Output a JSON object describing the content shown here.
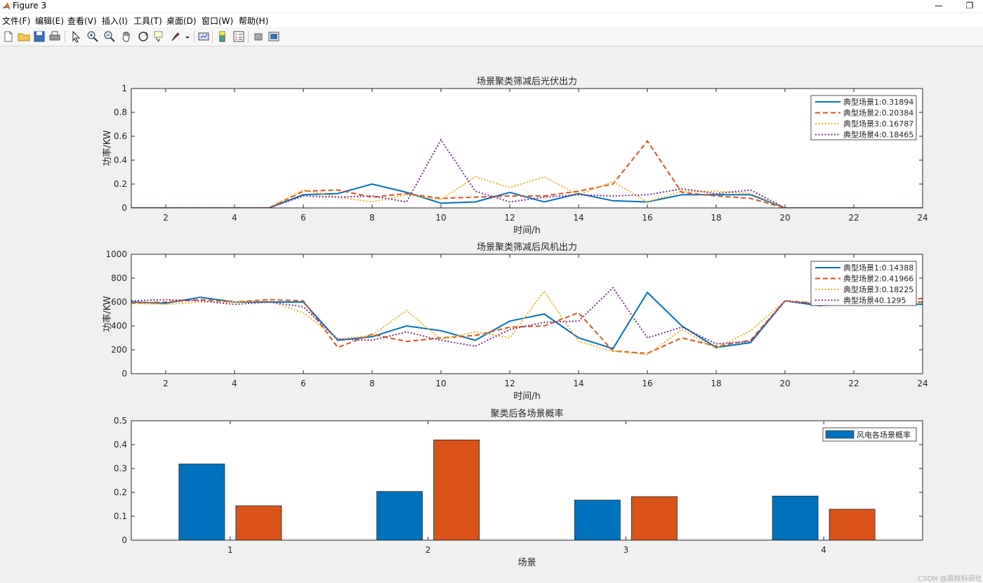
{
  "window": {
    "title": "Figure 3",
    "minimize_glyph": "—",
    "restore_glyph": "❐"
  },
  "menu": [
    "文件(F)",
    "编辑(E)",
    "查看(V)",
    "插入(I)",
    "工具(T)",
    "桌面(D)",
    "窗口(W)",
    "帮助(H)"
  ],
  "toolbar_icons": [
    "new-figure-icon",
    "open-file-icon",
    "save-icon",
    "print-icon",
    "select-arrow-icon",
    "zoom-in-icon",
    "zoom-out-icon",
    "pan-hand-icon",
    "rotate-3d-icon",
    "data-cursor-icon",
    "brush-icon",
    "link-plot-icon",
    "colorbar-icon",
    "legend-icon",
    "hide-plot-tools-icon",
    "show-plot-tools-icon"
  ],
  "colors": {
    "blue": "#0072BD",
    "orange": "#D95319",
    "yellow": "#EDB120",
    "purple": "#7E2F8E"
  },
  "watermark": "CSDN @荔枝科研社",
  "chart_data": [
    {
      "type": "line",
      "title": "场景聚类筛减后光伏出力",
      "xlabel": "时间/h",
      "ylabel": "功率/KW",
      "xlim": [
        1,
        24
      ],
      "ylim": [
        0,
        1
      ],
      "xticks": [
        2,
        4,
        6,
        8,
        10,
        12,
        14,
        16,
        18,
        20,
        22,
        24
      ],
      "yticks": [
        0,
        0.2,
        0.4,
        0.6,
        0.8,
        1
      ],
      "x": [
        1,
        2,
        3,
        4,
        5,
        6,
        7,
        8,
        9,
        10,
        11,
        12,
        13,
        14,
        15,
        16,
        17,
        18,
        19,
        20,
        21,
        22,
        23,
        24
      ],
      "legend_position": "top-right",
      "series": [
        {
          "name": "典型场景1:0.31894",
          "color": "#0072BD",
          "style": "solid",
          "values": [
            0,
            0,
            0,
            0,
            0,
            0.11,
            0.12,
            0.2,
            0.13,
            0.04,
            0.05,
            0.13,
            0.05,
            0.12,
            0.06,
            0.05,
            0.11,
            0.11,
            0.11,
            0,
            0,
            0,
            0,
            0
          ]
        },
        {
          "name": "典型场景2:0.20384",
          "color": "#D95319",
          "style": "dashed",
          "values": [
            0,
            0,
            0,
            0,
            0,
            0.14,
            0.15,
            0.09,
            0.12,
            0.08,
            0.09,
            0.1,
            0.1,
            0.14,
            0.2,
            0.56,
            0.13,
            0.1,
            0.08,
            0,
            0,
            0,
            0,
            0
          ]
        },
        {
          "name": "典型场景3:0.16787",
          "color": "#EDB120",
          "style": "dotted",
          "values": [
            0,
            0,
            0,
            0,
            0,
            0.15,
            0.09,
            0.05,
            0.11,
            0.07,
            0.26,
            0.17,
            0.26,
            0.11,
            0.22,
            0.05,
            0.14,
            0.14,
            0.12,
            0,
            0,
            0,
            0,
            0
          ]
        },
        {
          "name": "典型场景4:0.18465",
          "color": "#7E2F8E",
          "style": "dotted",
          "values": [
            0,
            0,
            0,
            0,
            0,
            0.1,
            0.09,
            0.1,
            0.05,
            0.57,
            0.14,
            0.05,
            0.09,
            0.11,
            0.1,
            0.11,
            0.16,
            0.12,
            0.15,
            0,
            0,
            0,
            0,
            0
          ]
        }
      ]
    },
    {
      "type": "line",
      "title": "场景聚类筛减后风机出力",
      "xlabel": "时间/h",
      "ylabel": "功率/KW",
      "xlim": [
        1,
        24
      ],
      "ylim": [
        0,
        1000
      ],
      "xticks": [
        2,
        4,
        6,
        8,
        10,
        12,
        14,
        16,
        18,
        20,
        22,
        24
      ],
      "yticks": [
        0,
        200,
        400,
        600,
        800,
        1000
      ],
      "x": [
        1,
        2,
        3,
        4,
        5,
        6,
        7,
        8,
        9,
        10,
        11,
        12,
        13,
        14,
        15,
        16,
        17,
        18,
        19,
        20,
        21,
        22,
        23,
        24
      ],
      "legend_position": "top-right",
      "series": [
        {
          "name": "典型场景1:0.14388",
          "color": "#0072BD",
          "style": "solid",
          "values": [
            600,
            590,
            640,
            600,
            600,
            600,
            280,
            310,
            400,
            360,
            280,
            440,
            500,
            300,
            210,
            680,
            400,
            220,
            260,
            610,
            570,
            590,
            590,
            580
          ]
        },
        {
          "name": "典型场景2:0.41966",
          "color": "#D95319",
          "style": "dashed",
          "values": [
            590,
            600,
            620,
            600,
            620,
            610,
            220,
            330,
            270,
            300,
            320,
            390,
            400,
            510,
            190,
            170,
            300,
            230,
            280,
            610,
            590,
            600,
            610,
            630
          ]
        },
        {
          "name": "典型场景3:0.18225",
          "color": "#EDB120",
          "style": "dotted",
          "values": [
            590,
            580,
            600,
            600,
            610,
            510,
            290,
            320,
            530,
            290,
            350,
            300,
            690,
            270,
            190,
            160,
            370,
            210,
            360,
            610,
            590,
            600,
            590,
            590
          ]
        },
        {
          "name": "典型场景40.1295",
          "color": "#7E2F8E",
          "style": "dotted",
          "values": [
            610,
            620,
            610,
            580,
            600,
            560,
            290,
            280,
            350,
            280,
            230,
            370,
            430,
            440,
            720,
            300,
            390,
            250,
            270,
            610,
            580,
            600,
            600,
            600
          ]
        }
      ]
    },
    {
      "type": "bar",
      "title": "聚类后各场景概率",
      "xlabel": "场景",
      "ylabel": "",
      "categories": [
        "1",
        "2",
        "3",
        "4"
      ],
      "ylim": [
        0,
        0.5
      ],
      "yticks": [
        0,
        0.1,
        0.2,
        0.3,
        0.4,
        0.5
      ],
      "legend_position": "top-right",
      "series": [
        {
          "name": "风电各场景概率",
          "color": "#0072BD",
          "values": [
            0.31894,
            0.20384,
            0.16787,
            0.18465
          ]
        },
        {
          "color": "#D95319",
          "values": [
            0.14388,
            0.41966,
            0.18225,
            0.1295
          ]
        }
      ]
    }
  ]
}
